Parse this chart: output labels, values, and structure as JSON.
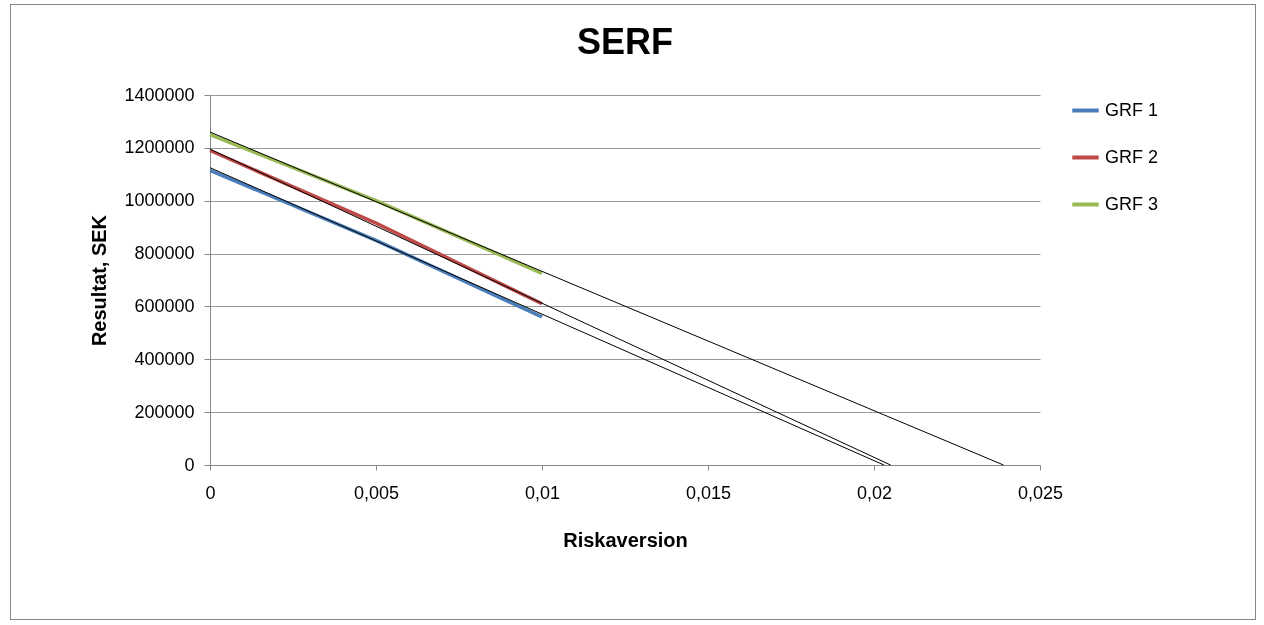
{
  "chart_data": {
    "type": "line",
    "title": "SERF",
    "xlabel": "Riskaversion",
    "ylabel": "Resultat, SEK",
    "series": [
      {
        "name": "GRF 1",
        "color": "#4a7ebb",
        "x": [
          0,
          0.005,
          0.01
        ],
        "values": [
          1115000,
          850000,
          560000
        ]
      },
      {
        "name": "GRF 2",
        "color": "#be4b48",
        "x": [
          0,
          0.005,
          0.01
        ],
        "values": [
          1190000,
          915000,
          610000
        ]
      },
      {
        "name": "GRF 3",
        "color": "#98b954",
        "x": [
          0,
          0.005,
          0.01
        ],
        "values": [
          1250000,
          1000000,
          725000
        ]
      },
      {
        "color": "#000000",
        "x": [
          0,
          0.0203
        ],
        "values": [
          1125000,
          0
        ]
      },
      {
        "color": "#000000",
        "x": [
          0,
          0.0205
        ],
        "values": [
          1195000,
          0
        ]
      },
      {
        "color": "#000000",
        "x": [
          0,
          0.0239
        ],
        "values": [
          1260000,
          0
        ]
      }
    ],
    "xlim": [
      0,
      0.025
    ],
    "xticks": [
      0,
      {
        "value": 0.005,
        "label": "0,005"
      },
      {
        "value": 0.01,
        "label": "0,01"
      },
      {
        "value": 0.015,
        "label": "0,015"
      },
      {
        "value": 0.02,
        "label": "0,02"
      },
      {
        "value": 0.025,
        "label": "0,025"
      }
    ],
    "ylim": [
      0,
      1400000
    ],
    "yticks": [
      0,
      200000,
      400000,
      600000,
      800000,
      1000000,
      1200000,
      1400000
    ],
    "grid": "y",
    "legend": "right",
    "marker": "none",
    "line_style": "solid"
  }
}
